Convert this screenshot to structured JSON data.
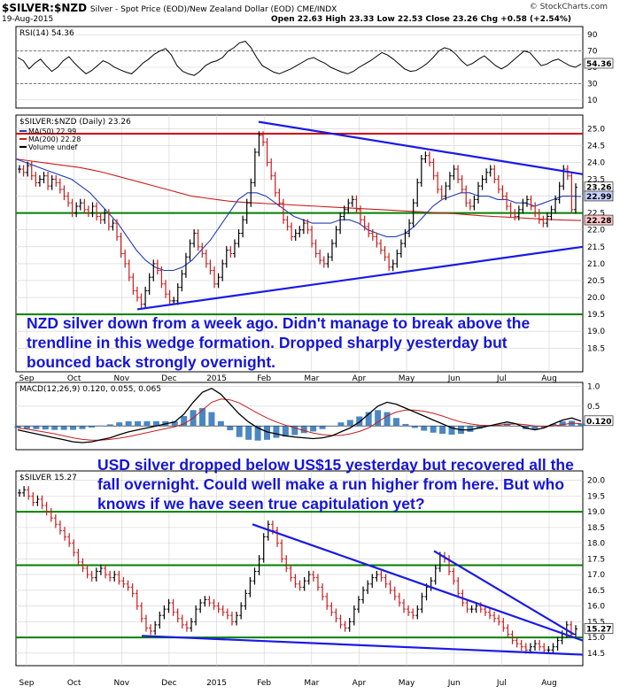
{
  "header": {
    "symbol": "$SILVER:$NZD",
    "description": "Silver - Spot Price (EOD)/New Zealand Dollar (EOD)  CME/INDX",
    "watermark": "© StockCharts.com",
    "date": "19-Aug-2015",
    "ohlc": "Open 22.63  High 23.33  Low 22.53  Close 23.26  Chg +0.58 (+2.54%)"
  },
  "annotations": {
    "nzd_note": "NZD silver down from a week ago. Didn't manage to break above the trendline in this wedge formation. Dropped sharply yesterday but bounced back strongly overnight.",
    "usd_note": "USD silver dropped below US$15 yesterday but recovered all the fall overnight. Could well make a run higher from here. But who knows if we have seen true capitulation yet?"
  },
  "colors": {
    "price_bar": "#000000",
    "ma50": "#1f3fb4",
    "ma200": "#c81e1e",
    "resistance_line": "#cc0000",
    "support_line": "#008000",
    "trendline": "#1a1ae6",
    "grid": "#d0d0d0",
    "macd_hist": "#2a72b8",
    "annotation_text": "#1515d8"
  },
  "chart_data": [
    {
      "type": "line",
      "title": "RSI(14) 54.36",
      "name": "rsi",
      "ylim": [
        0,
        100
      ],
      "yticks": [
        10,
        30,
        50,
        70,
        90
      ],
      "reference_lines": [
        30,
        70
      ],
      "last_value": 54.36,
      "y": [
        62,
        58,
        48,
        55,
        60,
        52,
        45,
        50,
        58,
        63,
        55,
        48,
        42,
        46,
        52,
        58,
        55,
        50,
        47,
        44,
        42,
        48,
        55,
        60,
        66,
        70,
        73,
        65,
        52,
        45,
        42,
        40,
        45,
        52,
        56,
        58,
        62,
        70,
        74,
        80,
        82,
        74,
        62,
        52,
        48,
        44,
        42,
        45,
        48,
        52,
        56,
        60,
        62,
        58,
        55,
        50,
        47,
        44,
        42,
        45,
        50,
        54,
        58,
        63,
        68,
        65,
        60,
        54,
        48,
        45,
        46,
        50,
        55,
        62,
        70,
        74,
        72,
        66,
        58,
        52,
        55,
        60,
        64,
        58,
        52,
        48,
        52,
        58,
        64,
        70,
        68,
        60,
        52,
        54,
        58,
        60,
        56,
        52,
        50,
        54
      ]
    },
    {
      "type": "line",
      "title": "$SILVER:$NZD (Daily) 23.26",
      "name": "nzd_price",
      "x_labels": [
        "Sep",
        "Oct",
        "Nov",
        "Dec",
        "2015",
        "Feb",
        "Mar",
        "Apr",
        "May",
        "Jun",
        "Jul",
        "Aug"
      ],
      "ylim": [
        17.8,
        25.4
      ],
      "yticks": [
        "18.5",
        "19.0",
        "19.5",
        "20.0",
        "20.5",
        "21.0",
        "21.5",
        "22.0",
        "22.5",
        "23.0",
        "23.5",
        "24.0",
        "24.5",
        "25.0"
      ],
      "legend": [
        "MA(50) 22.99",
        "MA(200) 22.28",
        "Volume undef"
      ],
      "last_labels": [
        "23.26",
        "22.99",
        "22.28"
      ],
      "close": [
        23.8,
        23.7,
        23.9,
        23.6,
        23.4,
        23.5,
        23.6,
        23.3,
        23.5,
        23.4,
        23.2,
        23.0,
        22.8,
        22.5,
        22.7,
        22.8,
        22.6,
        22.5,
        22.7,
        22.4,
        22.3,
        22.5,
        22.1,
        22.2,
        21.8,
        21.3,
        21.0,
        20.6,
        20.2,
        20.0,
        19.8,
        20.2,
        20.6,
        21.0,
        20.8,
        20.4,
        20.1,
        19.9,
        19.9,
        20.3,
        20.7,
        21.2,
        21.6,
        21.9,
        21.5,
        21.3,
        21.0,
        20.8,
        20.4,
        20.6,
        21.0,
        21.4,
        21.3,
        21.6,
        21.9,
        22.3,
        22.8,
        23.4,
        24.3,
        24.8,
        24.6,
        24.0,
        23.6,
        23.1,
        22.8,
        22.3,
        22.1,
        21.8,
        21.9,
        22.0,
        22.2,
        22.0,
        21.6,
        21.3,
        21.1,
        21.0,
        21.2,
        21.6,
        22.0,
        22.4,
        22.6,
        22.8,
        22.9,
        22.6,
        22.3,
        22.1,
        21.9,
        21.8,
        21.6,
        21.4,
        21.2,
        20.9,
        21.0,
        21.3,
        21.6,
        21.9,
        22.2,
        22.8,
        23.4,
        24.1,
        24.2,
        24.0,
        23.6,
        23.2,
        23.0,
        23.3,
        23.6,
        23.8,
        23.5,
        23.2,
        22.8,
        22.7,
        22.9,
        23.3,
        23.5,
        23.7,
        23.8,
        23.5,
        23.2,
        23.0,
        22.7,
        22.5,
        22.4,
        22.6,
        22.8,
        22.9,
        22.7,
        22.5,
        22.3,
        22.2,
        22.4,
        22.6,
        22.9,
        23.3,
        23.8,
        23.6,
        22.6,
        23.26
      ],
      "ma50": [
        24.1,
        24.0,
        23.9,
        23.8,
        23.7,
        23.6,
        23.5,
        23.3,
        23.1,
        22.8,
        22.5,
        22.2,
        21.8,
        21.4,
        21.1,
        20.9,
        20.8,
        20.8,
        20.9,
        21.1,
        21.4,
        21.7,
        22.1,
        22.5,
        22.9,
        23.1,
        23.1,
        23.0,
        22.8,
        22.6,
        22.4,
        22.3,
        22.2,
        22.2,
        22.2,
        22.3,
        22.3,
        22.2,
        22.0,
        21.9,
        21.8,
        21.8,
        21.9,
        22.1,
        22.4,
        22.7,
        22.9,
        23.0,
        23.1,
        23.1,
        23.0,
        23.0,
        22.9,
        22.9,
        22.8,
        22.8,
        22.7,
        22.8,
        22.9,
        23.0,
        23.0,
        22.99
      ],
      "ma200": [
        24.1,
        24.05,
        24.0,
        23.95,
        23.9,
        23.85,
        23.78,
        23.7,
        23.6,
        23.5,
        23.4,
        23.3,
        23.2,
        23.1,
        23.0,
        22.95,
        22.9,
        22.85,
        22.82,
        22.8,
        22.78,
        22.76,
        22.74,
        22.72,
        22.7,
        22.68,
        22.66,
        22.64,
        22.62,
        22.6,
        22.58,
        22.56,
        22.54,
        22.52,
        22.5,
        22.48,
        22.45,
        22.42,
        22.4,
        22.38,
        22.36,
        22.34,
        22.32,
        22.3,
        22.29,
        22.28
      ],
      "resistance": 24.85,
      "support": 22.5,
      "floor": 19.5,
      "upper_trend": [
        25.2,
        23.65
      ],
      "lower_trend": [
        19.65,
        21.5
      ]
    },
    {
      "type": "line",
      "title": "MACD(12,26,9) 0.120, 0.055, 0.065",
      "name": "macd",
      "ylim": [
        -0.6,
        1.1
      ],
      "yticks": [
        "0.5",
        "1.0"
      ],
      "last_label": "0.120",
      "macd": [
        -0.1,
        -0.15,
        -0.2,
        -0.25,
        -0.3,
        -0.35,
        -0.4,
        -0.42,
        -0.4,
        -0.35,
        -0.3,
        -0.22,
        -0.15,
        -0.1,
        -0.05,
        0.0,
        0.05,
        0.1,
        0.3,
        0.6,
        0.85,
        0.95,
        0.8,
        0.55,
        0.3,
        0.1,
        -0.05,
        -0.15,
        -0.2,
        -0.25,
        -0.28,
        -0.3,
        -0.32,
        -0.3,
        -0.25,
        -0.15,
        -0.05,
        0.1,
        0.3,
        0.5,
        0.6,
        0.55,
        0.45,
        0.35,
        0.25,
        0.15,
        0.05,
        -0.05,
        -0.1,
        -0.1,
        -0.05,
        0.0,
        0.05,
        0.1,
        0.05,
        -0.05,
        -0.1,
        -0.05,
        0.05,
        0.15,
        0.2,
        0.12
      ],
      "signal": [
        -0.05,
        -0.08,
        -0.12,
        -0.16,
        -0.2,
        -0.25,
        -0.3,
        -0.34,
        -0.36,
        -0.36,
        -0.34,
        -0.31,
        -0.27,
        -0.22,
        -0.17,
        -0.12,
        -0.07,
        -0.02,
        0.05,
        0.2,
        0.4,
        0.6,
        0.68,
        0.66,
        0.58,
        0.45,
        0.32,
        0.2,
        0.1,
        0.02,
        -0.05,
        -0.12,
        -0.18,
        -0.22,
        -0.24,
        -0.24,
        -0.2,
        -0.14,
        -0.05,
        0.1,
        0.25,
        0.35,
        0.4,
        0.4,
        0.37,
        0.32,
        0.25,
        0.17,
        0.1,
        0.05,
        0.02,
        0.01,
        0.02,
        0.04,
        0.05,
        0.03,
        0.0,
        -0.01,
        0.0,
        0.03,
        0.07,
        0.055
      ],
      "histogram_label": "0.065"
    },
    {
      "type": "line",
      "title": "$SILVER 15.27",
      "name": "usd_price",
      "x_labels": [
        "Sep",
        "Oct",
        "Nov",
        "Dec",
        "2015",
        "Feb",
        "Mar",
        "Apr",
        "May",
        "Jun",
        "Jul",
        "Aug"
      ],
      "ylim": [
        14.1,
        20.3
      ],
      "yticks": [
        "14.5",
        "15.0",
        "15.5",
        "16.0",
        "16.5",
        "17.0",
        "17.5",
        "18.0",
        "18.5",
        "19.0",
        "19.5",
        "20.0"
      ],
      "last_label": "15.27",
      "close": [
        19.6,
        19.7,
        19.5,
        19.3,
        19.4,
        19.2,
        19.0,
        18.8,
        18.6,
        18.4,
        18.2,
        18.0,
        17.7,
        17.4,
        17.2,
        17.0,
        16.9,
        17.1,
        17.2,
        17.0,
        16.9,
        17.0,
        16.8,
        16.7,
        16.6,
        16.4,
        16.0,
        15.6,
        15.3,
        15.2,
        15.4,
        15.7,
        15.9,
        16.1,
        15.8,
        15.6,
        15.4,
        15.3,
        15.5,
        15.9,
        16.1,
        16.2,
        16.1,
        16.0,
        15.9,
        15.8,
        15.7,
        15.5,
        15.7,
        16.0,
        16.4,
        16.8,
        17.1,
        17.5,
        18.2,
        18.6,
        18.4,
        18.0,
        17.5,
        17.2,
        16.9,
        16.7,
        16.6,
        16.8,
        17.0,
        16.9,
        16.6,
        16.3,
        16.0,
        15.8,
        15.6,
        15.4,
        15.3,
        15.5,
        15.9,
        16.2,
        16.5,
        16.7,
        16.9,
        17.0,
        16.9,
        16.7,
        16.5,
        16.3,
        16.1,
        15.9,
        15.8,
        15.7,
        15.9,
        16.3,
        16.6,
        16.8,
        17.2,
        17.6,
        17.5,
        17.1,
        16.8,
        16.4,
        16.1,
        15.9,
        15.9,
        16.0,
        15.9,
        15.8,
        15.7,
        15.6,
        15.5,
        15.3,
        15.1,
        14.9,
        14.8,
        14.7,
        14.6,
        14.7,
        14.8,
        14.7,
        14.6,
        14.6,
        14.7,
        14.9,
        15.1,
        15.4,
        15.1,
        15.27
      ],
      "resistance_levels": [
        19.0,
        17.3
      ],
      "support": 15.0,
      "trend_a": [
        18.6,
        14.9
      ],
      "trend_b": [
        15.05,
        14.45
      ],
      "trend_c": [
        17.75,
        15.1
      ]
    }
  ]
}
